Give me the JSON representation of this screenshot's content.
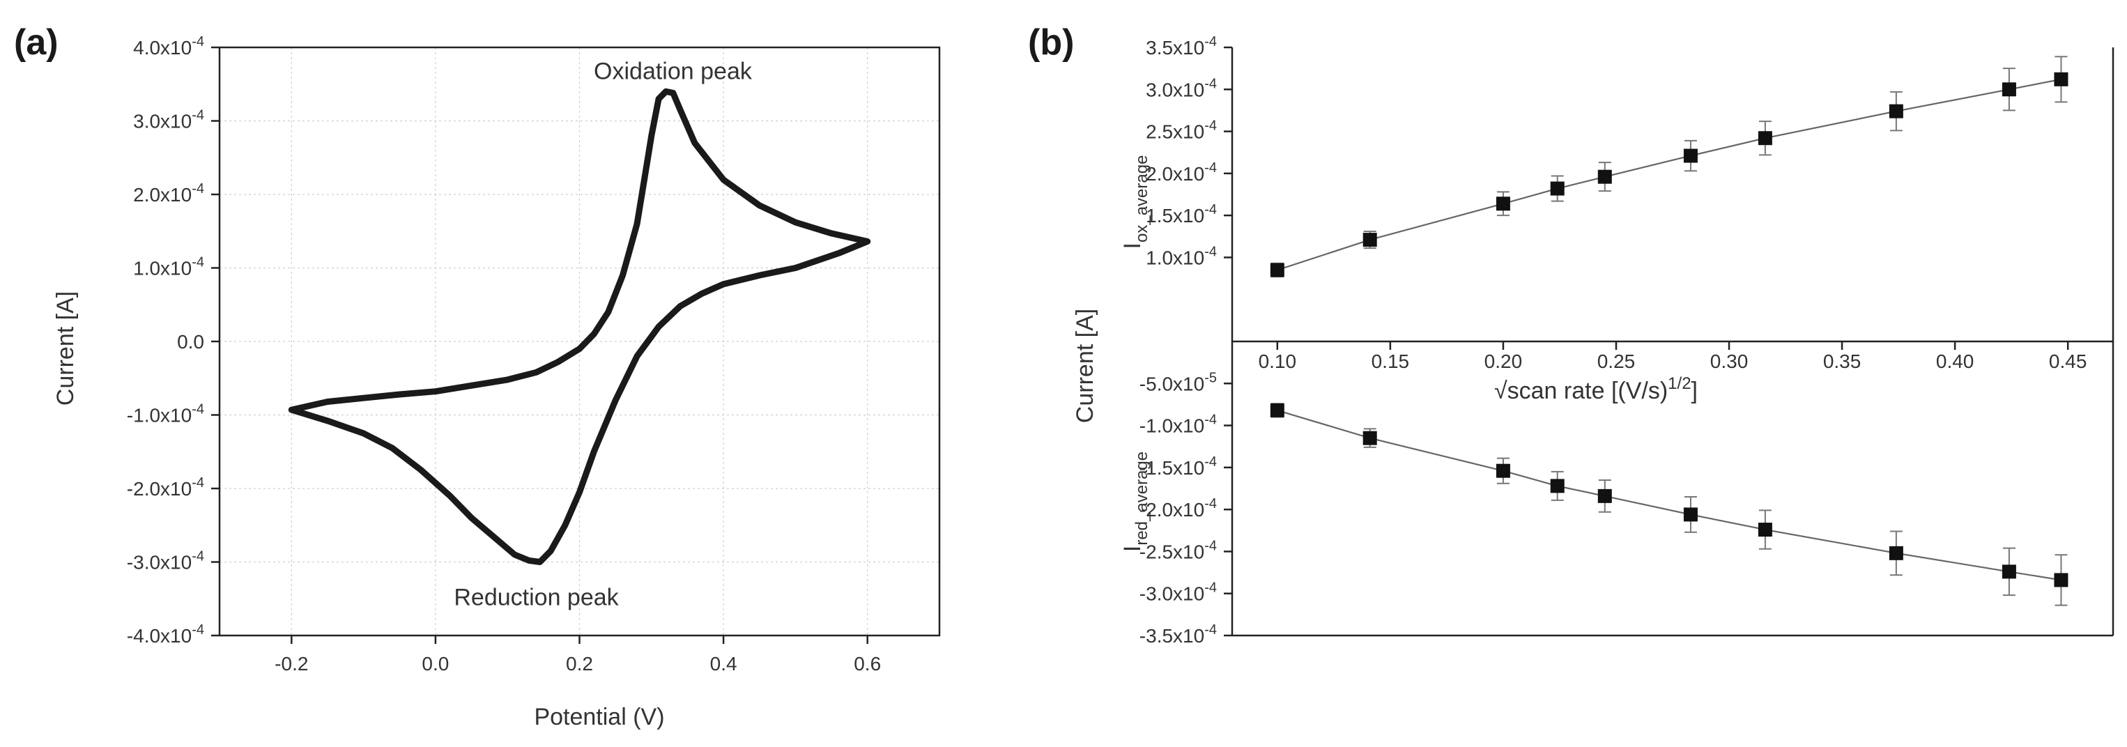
{
  "chart_data": [
    {
      "panel": "(a)",
      "type": "line",
      "xlabel": "Potential (V)",
      "ylabel": "Current [A]",
      "xlim": [
        -0.3,
        0.7
      ],
      "ylim": [
        -0.0004,
        0.0004
      ],
      "grid": true,
      "x_ticks": [
        -0.2,
        0.0,
        0.2,
        0.4,
        0.6
      ],
      "x_tick_labels": [
        "-0.2",
        "0.0",
        "0.2",
        "0.4",
        "0.6"
      ],
      "y_ticks": [
        -0.0004,
        -0.0003,
        -0.0002,
        -0.0001,
        0,
        0.0001,
        0.0002,
        0.0003,
        0.0004
      ],
      "y_tick_labels": [
        {
          "m": "-4.0x10",
          "e": "-4"
        },
        {
          "m": "-3.0x10",
          "e": "-4"
        },
        {
          "m": "-2.0x10",
          "e": "-4"
        },
        {
          "m": "-1.0x10",
          "e": "-4"
        },
        {
          "m": "0.0",
          "e": ""
        },
        {
          "m": "1.0x10",
          "e": "-4"
        },
        {
          "m": "2.0x10",
          "e": "-4"
        },
        {
          "m": "3.0x10",
          "e": "-4"
        },
        {
          "m": "4.0x10",
          "e": "-4"
        }
      ],
      "series": [
        {
          "color": "#1a1a1a",
          "points": [
            [
              0.0,
              -6.8e-05
            ],
            [
              0.05,
              -6e-05
            ],
            [
              0.1,
              -5.2e-05
            ],
            [
              0.14,
              -4.2e-05
            ],
            [
              0.17,
              -2.8e-05
            ],
            [
              0.2,
              -1e-05
            ],
            [
              0.22,
              1e-05
            ],
            [
              0.24,
              4e-05
            ],
            [
              0.26,
              9e-05
            ],
            [
              0.28,
              0.00016
            ],
            [
              0.29,
              0.00022
            ],
            [
              0.3,
              0.00028
            ],
            [
              0.31,
              0.00033
            ],
            [
              0.32,
              0.00034
            ],
            [
              0.33,
              0.000338
            ],
            [
              0.34,
              0.000315
            ],
            [
              0.36,
              0.00027
            ],
            [
              0.4,
              0.00022
            ],
            [
              0.45,
              0.000185
            ],
            [
              0.5,
              0.000162
            ],
            [
              0.55,
              0.000147
            ],
            [
              0.6,
              0.000136
            ],
            [
              0.56,
              0.00012
            ],
            [
              0.5,
              0.0001
            ],
            [
              0.45,
              9e-05
            ],
            [
              0.4,
              7.8e-05
            ],
            [
              0.37,
              6.5e-05
            ],
            [
              0.34,
              4.8e-05
            ],
            [
              0.31,
              2e-05
            ],
            [
              0.28,
              -2e-05
            ],
            [
              0.25,
              -8e-05
            ],
            [
              0.22,
              -0.00015
            ],
            [
              0.2,
              -0.000205
            ],
            [
              0.18,
              -0.00025
            ],
            [
              0.16,
              -0.000285
            ],
            [
              0.145,
              -0.0003
            ],
            [
              0.13,
              -0.000298
            ],
            [
              0.11,
              -0.00029
            ],
            [
              0.08,
              -0.000265
            ],
            [
              0.05,
              -0.00024
            ],
            [
              0.02,
              -0.00021
            ],
            [
              -0.02,
              -0.000175
            ],
            [
              -0.06,
              -0.000145
            ],
            [
              -0.1,
              -0.000125
            ],
            [
              -0.15,
              -0.000108
            ],
            [
              -0.2,
              -9.3e-05
            ],
            [
              -0.15,
              -8.2e-05
            ],
            [
              -0.1,
              -7.7e-05
            ],
            [
              -0.05,
              -7.2e-05
            ],
            [
              0.0,
              -6.8e-05
            ]
          ]
        }
      ],
      "annotations": [
        {
          "text": "Oxidation peak",
          "x": 0.32,
          "y": 0.00034
        },
        {
          "text": "Reduction peak",
          "x": 0.14,
          "y": -0.0003
        }
      ]
    },
    {
      "panel": "(b)",
      "type": "scatter",
      "xlabel_main": "√scan rate [(V/s)",
      "xlabel_sup": "1/2",
      "xlabel_end": "]",
      "ylabel": "Current [A]",
      "ylabel_top": {
        "base": "I",
        "sub": "ox_average"
      },
      "ylabel_bottom": {
        "base": "I",
        "sub": "red_average"
      },
      "xlim": [
        0.08,
        0.47
      ],
      "ylim": [
        -0.00035,
        0.00035
      ],
      "x_ticks": [
        0.1,
        0.15,
        0.2,
        0.25,
        0.3,
        0.35,
        0.4,
        0.45
      ],
      "x_tick_labels": [
        "0.10",
        "0.15",
        "0.20",
        "0.25",
        "0.30",
        "0.35",
        "0.40",
        "0.45"
      ],
      "y_ticks": [
        -0.00035,
        -0.0003,
        -0.00025,
        -0.0002,
        -0.00015,
        -0.0001,
        -5e-05,
        0.0001,
        0.00015,
        0.0002,
        0.00025,
        0.0003,
        0.00035
      ],
      "y_tick_labels": [
        {
          "m": "-3.5x10",
          "e": "-4"
        },
        {
          "m": "-3.0x10",
          "e": "-4"
        },
        {
          "m": "-2.5x10",
          "e": "-4"
        },
        {
          "m": "-2.0x10",
          "e": "-4"
        },
        {
          "m": "-1.5x10",
          "e": "-4"
        },
        {
          "m": "-1.0x10",
          "e": "-4"
        },
        {
          "m": "-5.0x10",
          "e": "-5"
        },
        {
          "m": "1.0x10",
          "e": "-4"
        },
        {
          "m": "1.5x10",
          "e": "-4"
        },
        {
          "m": "2.0x10",
          "e": "-4"
        },
        {
          "m": "2.5x10",
          "e": "-4"
        },
        {
          "m": "3.0x10",
          "e": "-4"
        },
        {
          "m": "3.5x10",
          "e": "-4"
        }
      ],
      "series": [
        {
          "name": "I_ox_average",
          "x": [
            0.1,
            0.141,
            0.2,
            0.224,
            0.245,
            0.283,
            0.316,
            0.374,
            0.424,
            0.447
          ],
          "y": [
            8.5e-05,
            0.000121,
            0.000164,
            0.000182,
            0.000196,
            0.000221,
            0.000242,
            0.000274,
            0.0003,
            0.000312
          ],
          "err": [
            8e-06,
            1e-05,
            1.4e-05,
            1.5e-05,
            1.7e-05,
            1.8e-05,
            2e-05,
            2.3e-05,
            2.5e-05,
            2.7e-05
          ]
        },
        {
          "name": "I_red_average",
          "x": [
            0.1,
            0.141,
            0.2,
            0.224,
            0.245,
            0.283,
            0.316,
            0.374,
            0.424,
            0.447
          ],
          "y": [
            -8.2e-05,
            -0.000115,
            -0.000154,
            -0.000172,
            -0.000184,
            -0.000206,
            -0.000224,
            -0.000252,
            -0.000274,
            -0.000284
          ],
          "err": [
            8e-06,
            1.1e-05,
            1.5e-05,
            1.7e-05,
            1.9e-05,
            2.1e-05,
            2.3e-05,
            2.6e-05,
            2.8e-05,
            3e-05
          ]
        }
      ]
    }
  ]
}
